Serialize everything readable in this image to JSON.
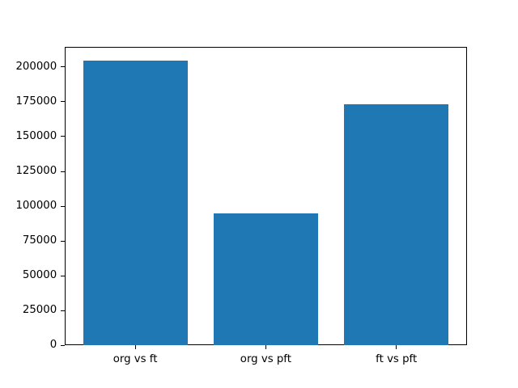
{
  "chart_data": {
    "type": "bar",
    "title": "",
    "xlabel": "",
    "ylabel": "",
    "categories": [
      "org vs ft",
      "org vs pft",
      "ft vs pft"
    ],
    "values": [
      204500,
      95000,
      173200
    ],
    "yticks": [
      0,
      25000,
      50000,
      75000,
      100000,
      125000,
      150000,
      175000,
      200000
    ],
    "ylim": [
      0,
      214700
    ],
    "xlim": [
      -0.54,
      2.54
    ],
    "bar_width": 0.8,
    "bar_color": "#1f77b4",
    "grid": false,
    "legend": "none",
    "background_color": "#ffffff",
    "spine_color": "#000000"
  }
}
